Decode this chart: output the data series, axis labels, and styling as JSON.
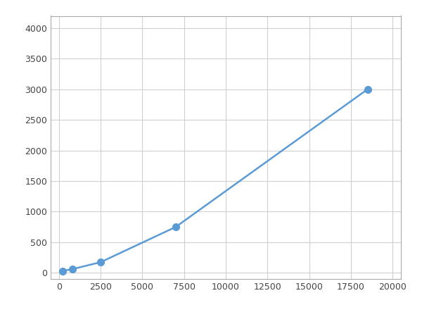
{
  "x": [
    200,
    800,
    2500,
    7000,
    18500
  ],
  "y": [
    30,
    60,
    175,
    750,
    3000
  ],
  "line_color": "#5b9bd5",
  "marker_color": "#5b9bd5",
  "marker_size": 7,
  "line_width": 1.8,
  "xlim": [
    -500,
    20500
  ],
  "ylim": [
    -100,
    4200
  ],
  "xticks": [
    0,
    2500,
    5000,
    7500,
    10000,
    12500,
    15000,
    17500,
    20000
  ],
  "yticks": [
    0,
    500,
    1000,
    1500,
    2000,
    2500,
    3000,
    3500,
    4000
  ],
  "grid_color": "#d0d0d0",
  "background_color": "#ffffff",
  "figsize": [
    6.0,
    4.5
  ],
  "dpi": 100
}
